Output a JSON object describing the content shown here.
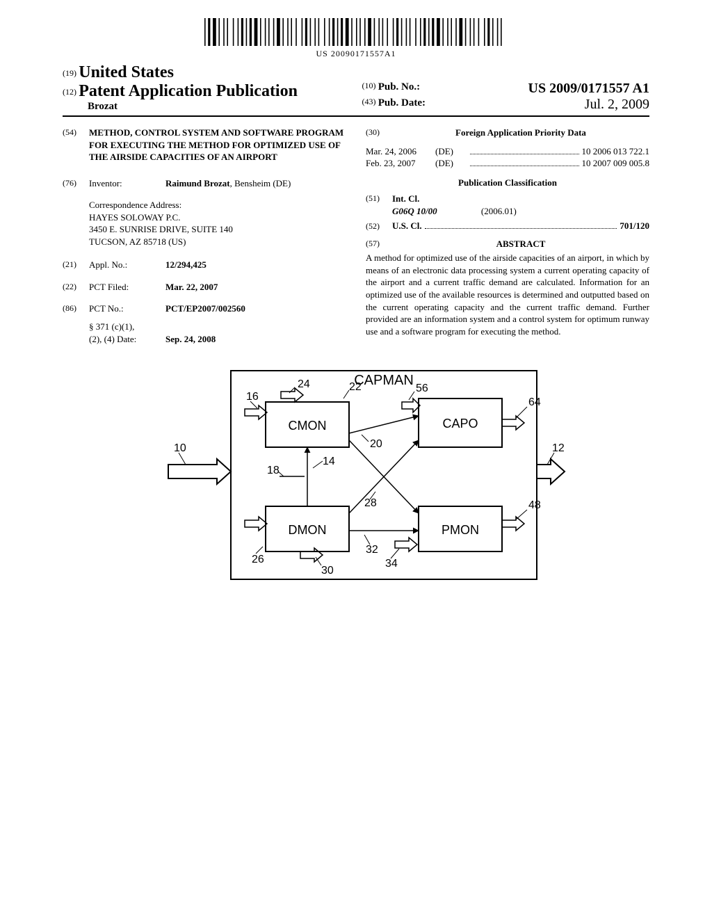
{
  "barcode": {
    "number": "US 20090171557A1",
    "glyphs": "||||| |||||| ||| || ||||| |||| |||| ||||| |||| |||| ||| |||| ||||| |||| |||| ||||| |||| |||| ||| |||| ||||| ||| ||| ||||"
  },
  "header": {
    "code19": "(19)",
    "country": "United States",
    "code12": "(12)",
    "doctype": "Patent Application Publication",
    "author": "Brozat",
    "code10": "(10)",
    "pubno_label": "Pub. No.:",
    "pubno": "US 2009/0171557 A1",
    "code43": "(43)",
    "pubdate_label": "Pub. Date:",
    "pubdate": "Jul. 2, 2009"
  },
  "left": {
    "code54": "(54)",
    "title": "METHOD, CONTROL SYSTEM AND SOFTWARE PROGRAM FOR EXECUTING THE METHOD FOR OPTIMIZED USE OF THE AIRSIDE CAPACITIES OF AN AIRPORT",
    "code76": "(76)",
    "inventor_label": "Inventor:",
    "inventor": "Raimund Brozat",
    "inventor_loc": ", Bensheim (DE)",
    "corr_label": "Correspondence Address:",
    "corr_line1": "HAYES SOLOWAY P.C.",
    "corr_line2": "3450 E. SUNRISE DRIVE, SUITE 140",
    "corr_line3": "TUCSON, AZ 85718 (US)",
    "code21": "(21)",
    "applno_label": "Appl. No.:",
    "applno": "12/294,425",
    "code22": "(22)",
    "pctfiled_label": "PCT Filed:",
    "pctfiled": "Mar. 22, 2007",
    "code86": "(86)",
    "pctno_label": "PCT No.:",
    "pctno": "PCT/EP2007/002560",
    "s371_l1": "§ 371 (c)(1),",
    "s371_l2": "(2), (4) Date:",
    "s371_date": "Sep. 24, 2008"
  },
  "right": {
    "code30": "(30)",
    "foreign_title": "Foreign Application Priority Data",
    "prio": [
      {
        "date": "Mar. 24, 2006",
        "cc": "(DE)",
        "num": "10 2006 013 722.1"
      },
      {
        "date": "Feb. 23, 2007",
        "cc": "(DE)",
        "num": "10 2007 009 005.8"
      }
    ],
    "pub_cls_title": "Publication Classification",
    "code51": "(51)",
    "intcl_label": "Int. Cl.",
    "intcl_sym": "G06Q 10/00",
    "intcl_ver": "(2006.01)",
    "code52": "(52)",
    "uscl_label": "U.S. Cl.",
    "uscl_val": "701/120",
    "code57": "(57)",
    "abstract_title": "ABSTRACT",
    "abstract": "A method for optimized use of the airside capacities of an airport, in which by means of an electronic data processing system a current operating capacity of the airport and a current traffic demand are calculated. Information for an optimized use of the available resources is determined and outputted based on the current operating capacity and the current traffic demand. Further provided are an information system and a control system for optimum runway use and a software program for executing the method."
  },
  "figure": {
    "title": "CAPMAN",
    "boxes": {
      "cmon": "CMON",
      "capo": "CAPO",
      "dmon": "DMON",
      "pmon": "PMON"
    },
    "refs": {
      "r10": "10",
      "r12": "12",
      "r14": "14",
      "r16": "16",
      "r18": "18",
      "r20": "20",
      "r22": "22",
      "r24": "24",
      "r26": "26",
      "r28": "28",
      "r30": "30",
      "r32": "32",
      "r34": "34",
      "r48": "48",
      "r56": "56",
      "r64": "64"
    },
    "style": {
      "stroke": "#000000",
      "stroke_width": 2,
      "font_family": "Arial",
      "label_size": 18,
      "title_size": 20,
      "ref_size": 16
    }
  }
}
